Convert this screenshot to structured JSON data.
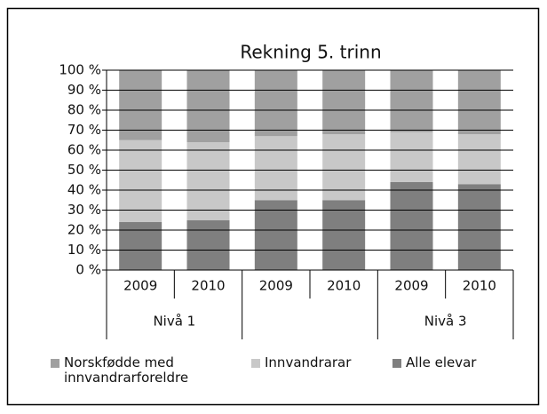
{
  "chart_data": {
    "type": "stacked_bar",
    "title": "Rekning 5. trinn",
    "categories": [
      "2009",
      "2010",
      "2009",
      "2010",
      "2009",
      "2010"
    ],
    "groups": [
      "Nivå 1",
      null,
      "Nivå 3"
    ],
    "series": [
      {
        "name": "Alle elevar",
        "color": "#7f7f7f",
        "values": [
          24,
          25,
          35,
          35,
          44,
          43
        ]
      },
      {
        "name": "Innvandrarar",
        "color": "#c8c8c8",
        "values": [
          41,
          39,
          32,
          33,
          25,
          25
        ]
      },
      {
        "name": "Norskfødde med innvandrarforeldre",
        "color": "#a0a0a0",
        "values": [
          35,
          36,
          33,
          32,
          31,
          32
        ]
      }
    ],
    "ylim": [
      0,
      100
    ],
    "yticks": [
      {
        "value": 0,
        "label": "0 %"
      },
      {
        "value": 10,
        "label": "10 %"
      },
      {
        "value": 20,
        "label": "20 %"
      },
      {
        "value": 30,
        "label": "30 %"
      },
      {
        "value": 40,
        "label": "40 %"
      },
      {
        "value": 50,
        "label": "50 %"
      },
      {
        "value": 60,
        "label": "60 %"
      },
      {
        "value": 70,
        "label": "70 %"
      },
      {
        "value": 80,
        "label": "80 %"
      },
      {
        "value": 90,
        "label": "90 %"
      },
      {
        "value": 100,
        "label": "100 %"
      }
    ],
    "grid": true,
    "legend": "bottom"
  }
}
